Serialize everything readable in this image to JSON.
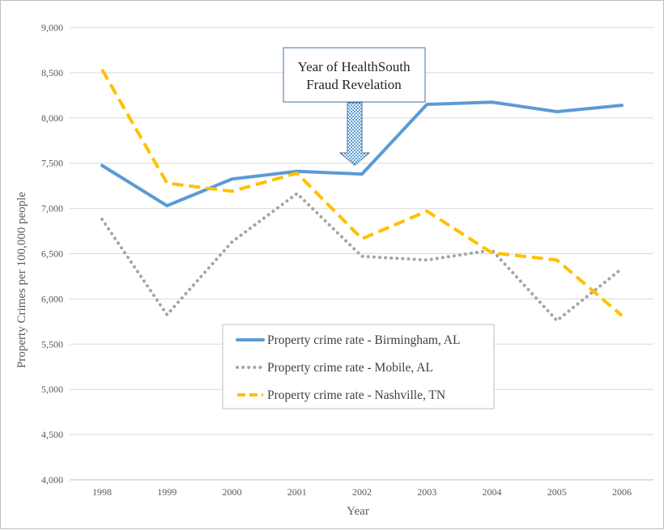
{
  "chart_data": {
    "type": "line",
    "xlabel": "Year",
    "ylabel": "Property Crimes per 100,000 people",
    "categories": [
      "1998",
      "1999",
      "2000",
      "2001",
      "2002",
      "2003",
      "2004",
      "2005",
      "2006"
    ],
    "ylim": [
      4000,
      9000
    ],
    "yticks": [
      "4,000",
      "4,500",
      "5,000",
      "5,500",
      "6,000",
      "6,500",
      "7,000",
      "7,500",
      "8,000",
      "8,500",
      "9,000"
    ],
    "grid": true,
    "legend_position": "center-bottom",
    "series": [
      {
        "name": "Property crime rate - Birmingham, AL",
        "color": "#5b9bd5",
        "dash": "solid",
        "values": [
          7475,
          7030,
          7325,
          7410,
          7380,
          8150,
          8175,
          8070,
          8140
        ]
      },
      {
        "name": "Property crime rate - Mobile, AL",
        "color": "#a5a5a5",
        "dash": "dotted",
        "values": [
          6880,
          5825,
          6630,
          7165,
          6470,
          6430,
          6540,
          5760,
          6335
        ]
      },
      {
        "name": "Property crime rate - Nashville, TN",
        "color": "#ffc000",
        "dash": "dashed",
        "values": [
          8535,
          7280,
          7190,
          7390,
          6665,
          6970,
          6510,
          6430,
          5815
        ]
      }
    ],
    "annotation": {
      "line1": "Year of HealthSouth",
      "line2": "Fraud Revelation",
      "points_to": "2002"
    }
  }
}
